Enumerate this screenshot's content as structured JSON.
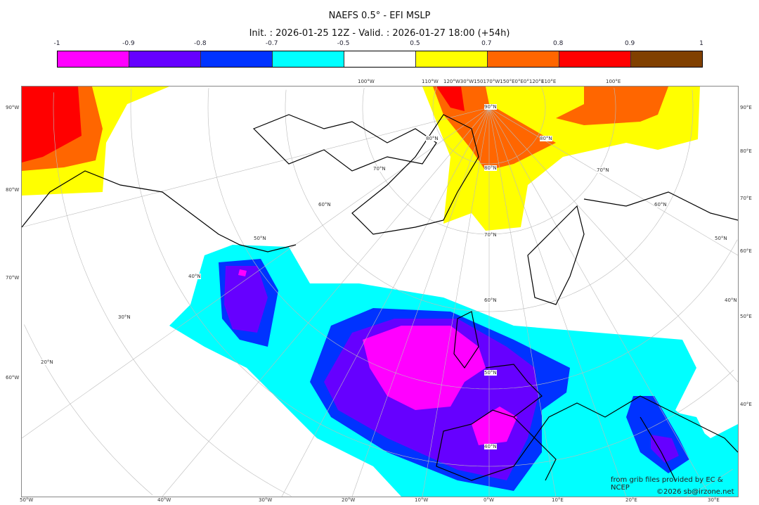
{
  "title": "NAEFS 0.5° - EFI MSLP",
  "subtitle": "Init. : 2026-01-25 12Z - Valid. : 2026-01-27 18:00 (+54h)",
  "colorbar": {
    "ticks": [
      "-1",
      "-0.9",
      "-0.8",
      "-0.7",
      "-0.5",
      "0.5",
      "0.7",
      "0.8",
      "0.9",
      "1"
    ],
    "colors": [
      "#ff00ff",
      "#6600ff",
      "#0033ff",
      "#00ffff",
      "#ffffff",
      "#ffff00",
      "#ff6600",
      "#ff0000",
      "#804000"
    ]
  },
  "axes": {
    "left": [
      "90°W",
      "80°W",
      "70°W",
      "60°W"
    ],
    "bottom": [
      "50°W",
      "40°W",
      "30°W",
      "20°W",
      "10°W",
      "0°W",
      "10°E",
      "20°E",
      "30°E"
    ],
    "right": [
      "90°E",
      "80°E",
      "70°E",
      "60°E",
      "50°E",
      "40°E"
    ],
    "top": [
      "100°W",
      "110°W",
      "120°W30°W150170°W150°E0°E0°120°E",
      "110°E",
      "100°E"
    ]
  },
  "grid_labels": [
    "90°N",
    "80°N",
    "80°N",
    "80°N",
    "70°N",
    "70°N",
    "70°N",
    "60°N",
    "60°N",
    "60°N",
    "50°N",
    "50°N",
    "50°N",
    "40°N",
    "40°N",
    "40°N",
    "30°N",
    "20°N"
  ],
  "credits": {
    "source": "from grib files provided by EC & NCEP",
    "copyright": "©2026 sb@irzone.net"
  }
}
